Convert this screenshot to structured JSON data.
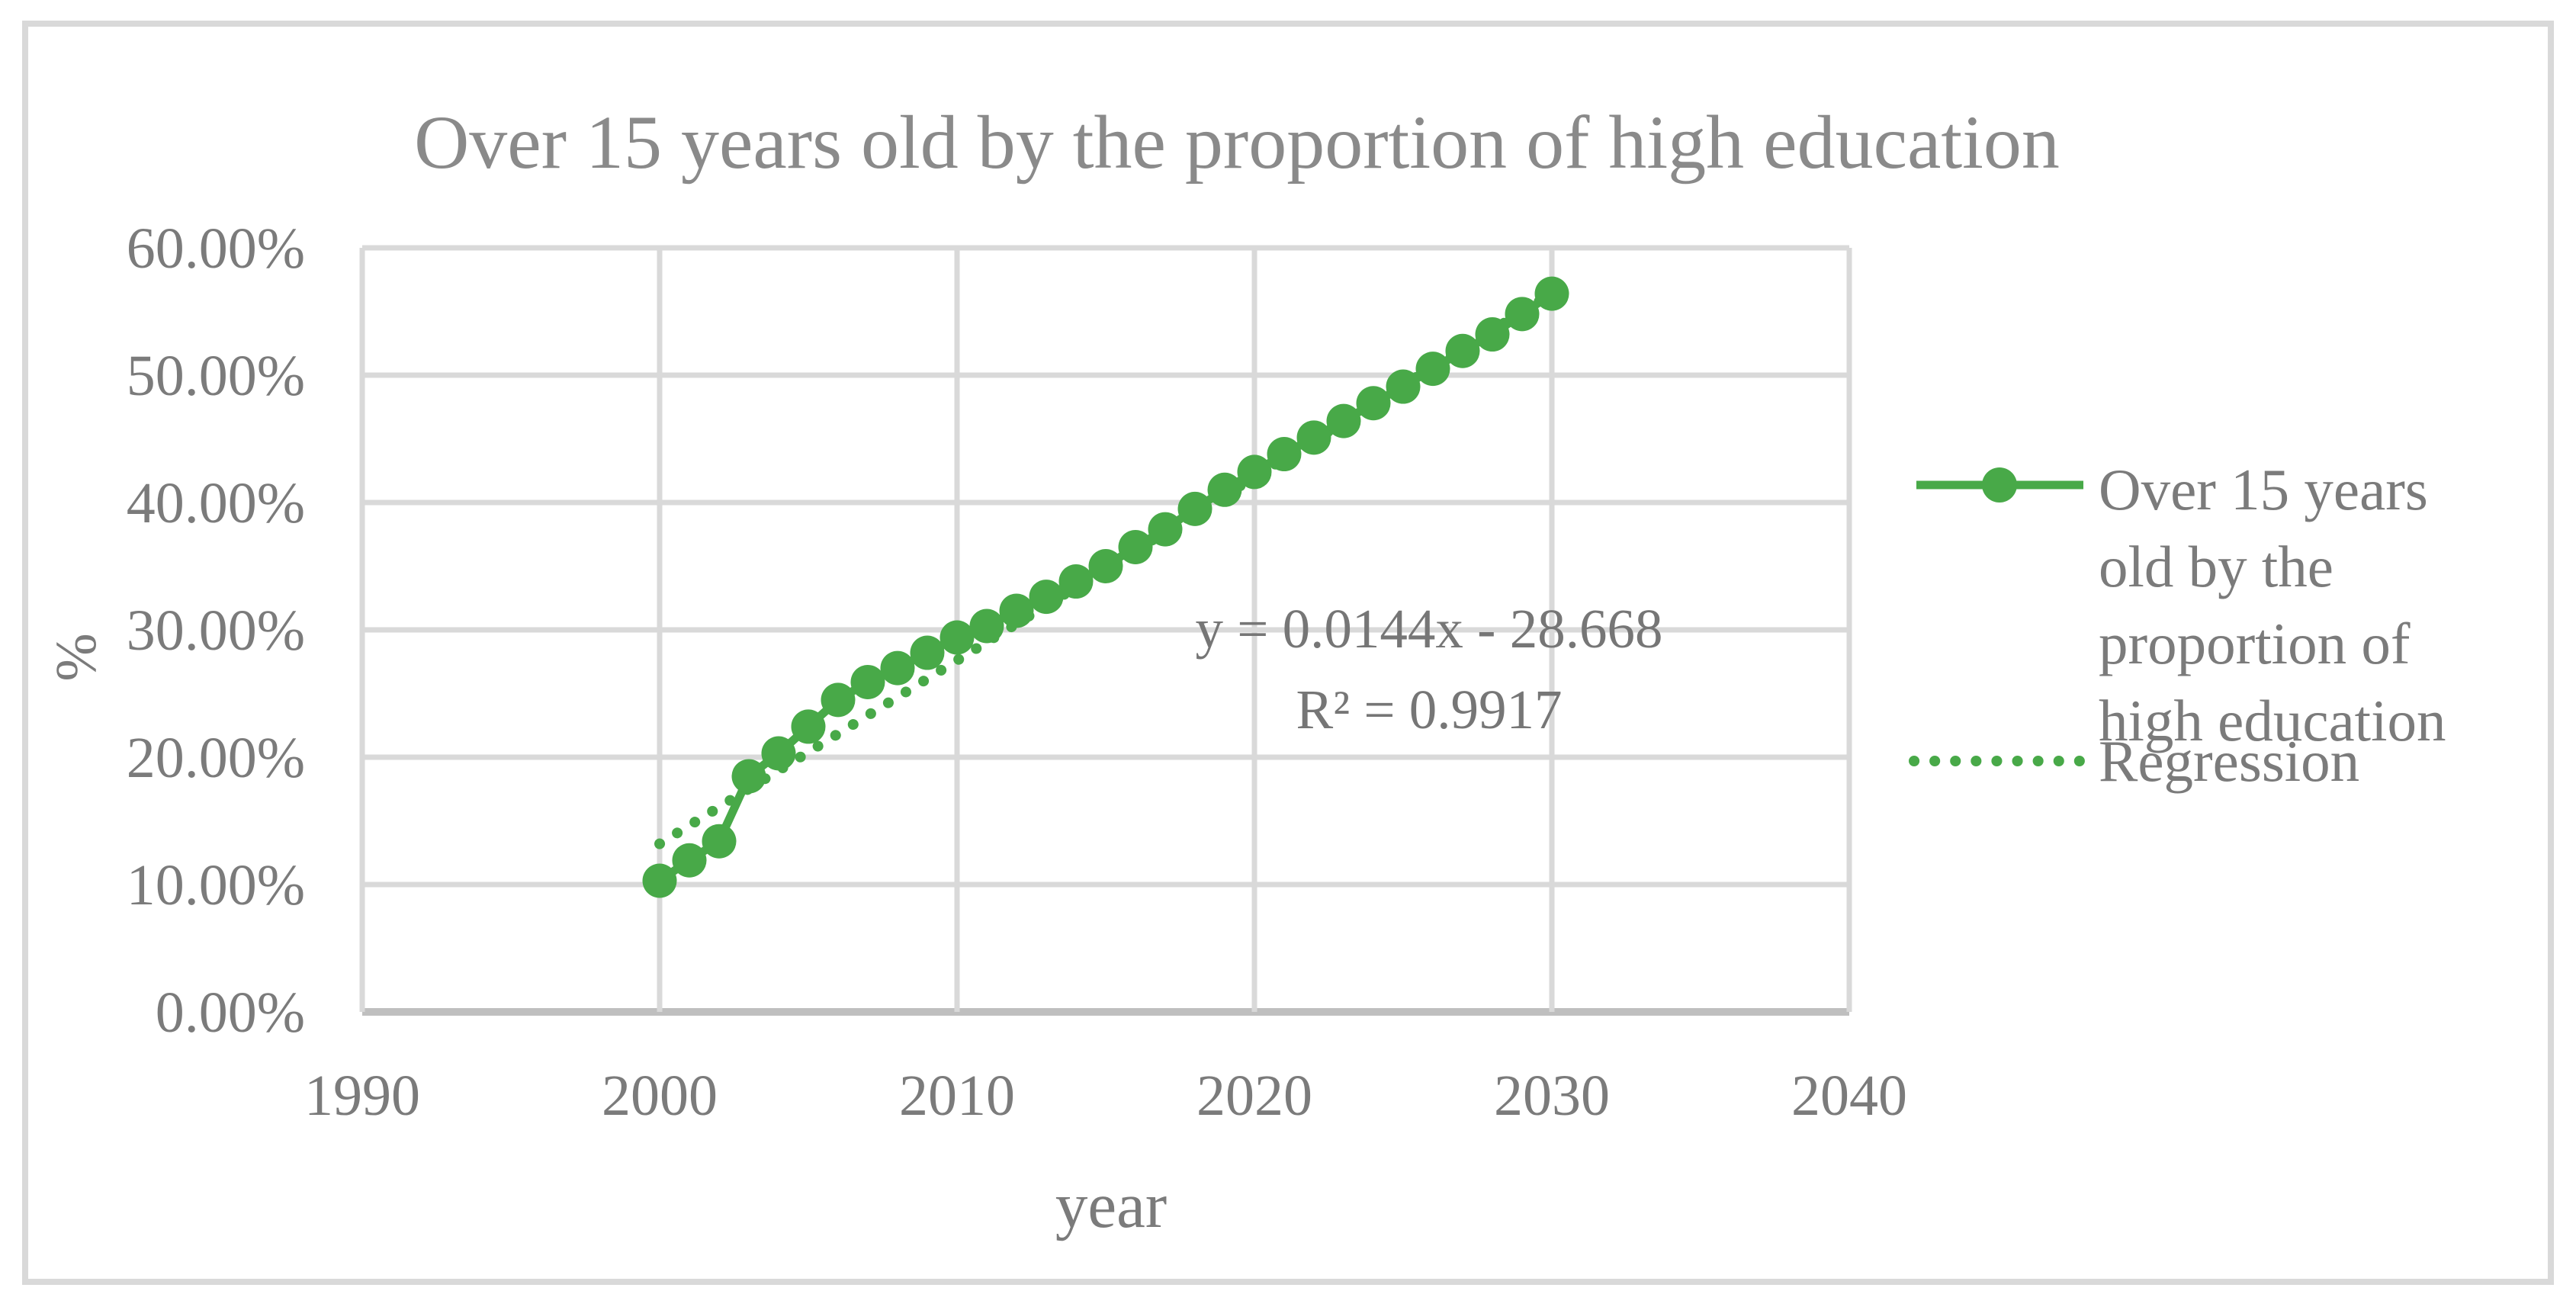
{
  "figure": {
    "type": "excel-style-scatter-chart-figure",
    "border_color": "#d9d9d9"
  },
  "colors": {
    "series_green": "#48a948",
    "gridline": "#d9d9d9",
    "axis_line": "#bfbfbf",
    "tick_text": "#7b7b7b",
    "title_text": "#8a8a8a",
    "equation_text": "#767676"
  },
  "chart_data": {
    "type": "line",
    "title": "Over 15 years old by the proportion of high education",
    "xlabel": "year",
    "ylabel": "%",
    "xlim": [
      1990,
      2040
    ],
    "ylim_percent": [
      0,
      60
    ],
    "grid": true,
    "legend_position": "right",
    "x_ticks": [
      {
        "value": 1990,
        "label": "1990"
      },
      {
        "value": 2000,
        "label": "2000"
      },
      {
        "value": 2010,
        "label": "2010"
      },
      {
        "value": 2020,
        "label": "2020"
      },
      {
        "value": 2030,
        "label": "2030"
      },
      {
        "value": 2040,
        "label": "2040"
      }
    ],
    "y_ticks": [
      {
        "value": 0,
        "label": "0.00%"
      },
      {
        "value": 10,
        "label": "10.00%"
      },
      {
        "value": 20,
        "label": "20.00%"
      },
      {
        "value": 30,
        "label": "30.00%"
      },
      {
        "value": 40,
        "label": "40.00%"
      },
      {
        "value": 50,
        "label": "50.00%"
      },
      {
        "value": 60,
        "label": "60.00%"
      }
    ],
    "series": [
      {
        "name": "Over 15 years old by the proportion of high education",
        "style": "solid-line-round-markers",
        "x": [
          2000,
          2001,
          2002,
          2003,
          2004,
          2005,
          2006,
          2007,
          2008,
          2009,
          2010,
          2011,
          2012,
          2013,
          2014,
          2015,
          2016,
          2017,
          2018,
          2019,
          2020,
          2021,
          2022,
          2023,
          2024,
          2025,
          2026,
          2027,
          2028,
          2029,
          2030
        ],
        "y_percent": [
          10.3,
          11.9,
          13.4,
          18.5,
          20.3,
          22.4,
          24.5,
          25.9,
          27.0,
          28.2,
          29.4,
          30.3,
          31.5,
          32.6,
          33.8,
          35.0,
          36.5,
          37.9,
          39.5,
          41.0,
          42.4,
          43.8,
          45.1,
          46.4,
          47.8,
          49.1,
          50.5,
          51.9,
          53.2,
          54.8,
          56.4
        ]
      },
      {
        "name": "Regression",
        "style": "dotted-line",
        "slope": 0.0144,
        "intercept": -28.668,
        "r_squared": 0.9917,
        "x_range": [
          2000,
          2030
        ]
      }
    ],
    "annotation": {
      "equation": "y = 0.0144x - 28.668",
      "r_squared_label": "R² = 0.9917"
    }
  }
}
